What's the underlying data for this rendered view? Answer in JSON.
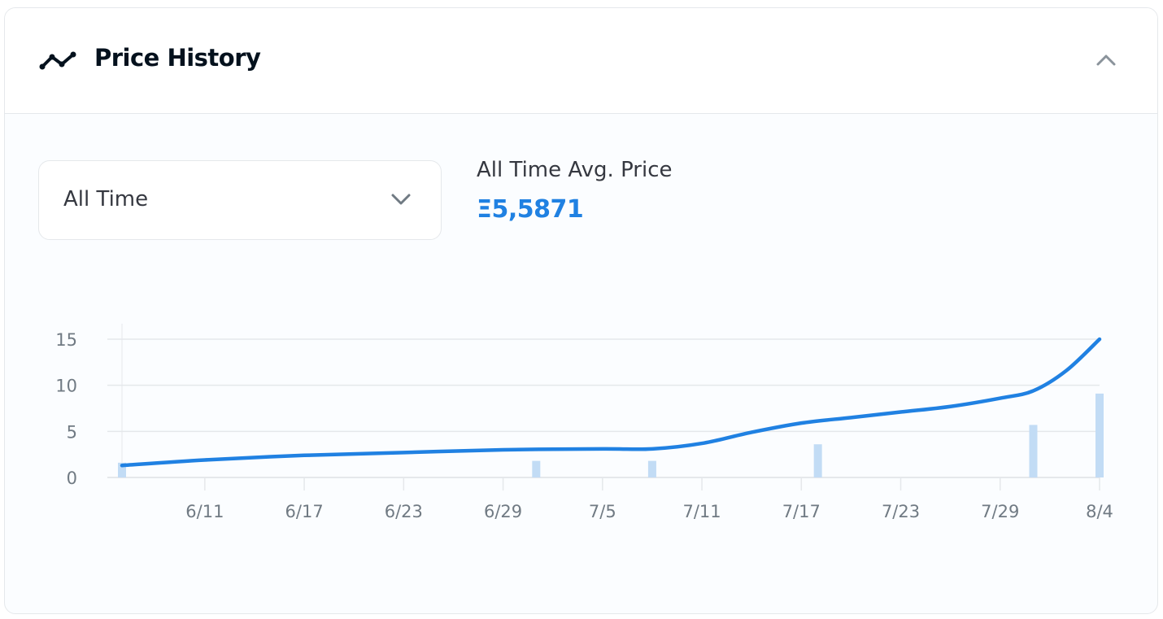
{
  "header": {
    "title": "Price History",
    "icon": "line-chart-icon",
    "toggle_icon": "chevron-up-icon"
  },
  "filter": {
    "selected": "All Time",
    "icon": "chevron-down-icon"
  },
  "summary": {
    "label": "All Time Avg. Price",
    "value": "Ξ5,5871"
  },
  "colors": {
    "line": "#2081e2",
    "bars": "#c2dcf5",
    "accent": "#2081e2"
  },
  "chart_data": {
    "type": "line",
    "xlabel": "",
    "ylabel": "",
    "x_axis": "date",
    "xlim": [
      "6/6",
      "8/4"
    ],
    "ylim": [
      0,
      15
    ],
    "y_ticks": [
      0,
      5,
      10,
      15
    ],
    "x_ticks": [
      "6/11",
      "6/17",
      "6/23",
      "6/29",
      "7/5",
      "7/11",
      "7/17",
      "7/23",
      "7/29",
      "8/4"
    ],
    "grid": "horizontal",
    "series": [
      {
        "type": "line",
        "x": [
          "6/6",
          "6/11",
          "6/17",
          "6/23",
          "6/29",
          "7/5",
          "7/8",
          "7/11",
          "7/14",
          "7/17",
          "7/20",
          "7/23",
          "7/26",
          "7/29",
          "7/31",
          "8/2",
          "8/4"
        ],
        "values": [
          1.3,
          1.9,
          2.4,
          2.7,
          3.0,
          3.1,
          3.1,
          3.7,
          4.9,
          5.9,
          6.5,
          7.1,
          7.7,
          8.6,
          9.4,
          11.6,
          15.0
        ]
      },
      {
        "type": "bar",
        "x": [
          "6/6",
          "7/1",
          "7/8",
          "7/18",
          "7/31",
          "8/4"
        ],
        "values": [
          1.6,
          1.8,
          1.8,
          3.6,
          5.7,
          9.1
        ]
      }
    ]
  }
}
